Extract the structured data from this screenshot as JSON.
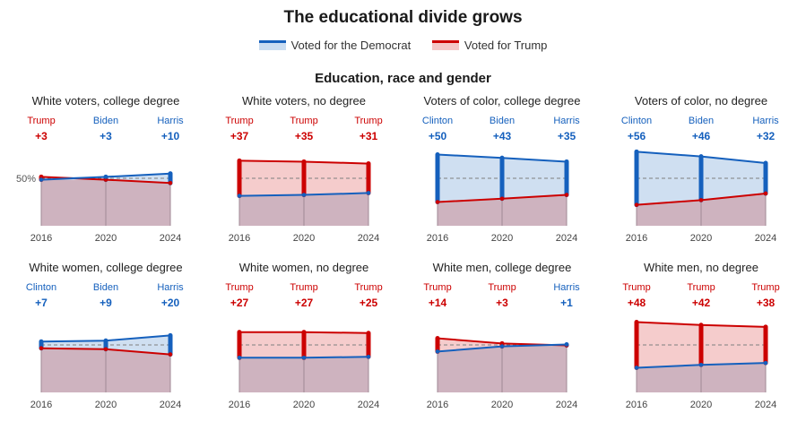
{
  "title": "The educational divide grows",
  "legend": [
    {
      "label": "Voted for the Democrat",
      "color": "#1560bd",
      "fill": "#c9dcf1"
    },
    {
      "label": "Voted for Trump",
      "color": "#cc0000",
      "fill": "#f4c7c7"
    }
  ],
  "subtitle": "Education, race and gender",
  "colors": {
    "dem": "#1560bd",
    "rep": "#cc0000",
    "dem_fill": "#cfdff1",
    "rep_fill": "#f5cccc",
    "overlap": "#ceb3bf",
    "axis": "#999999"
  },
  "chart_data": [
    {
      "type": "area",
      "title": "White voters, college degree",
      "x": [
        "2016",
        "2020",
        "2024"
      ],
      "ylabel_mark": "50%",
      "winners": [
        "Trump",
        "Biden",
        "Harris"
      ],
      "margins": [
        "+3",
        "+3",
        "+10"
      ],
      "series": [
        {
          "name": "Voted for the Democrat",
          "values": [
            48.5,
            51.5,
            55
          ]
        },
        {
          "name": "Voted for Trump",
          "values": [
            51.5,
            48.5,
            45
          ]
        }
      ]
    },
    {
      "type": "area",
      "title": "White voters, no degree",
      "x": [
        "2016",
        "2020",
        "2024"
      ],
      "winners": [
        "Trump",
        "Trump",
        "Trump"
      ],
      "margins": [
        "+37",
        "+35",
        "+31"
      ],
      "series": [
        {
          "name": "Voted for the Democrat",
          "values": [
            31.5,
            32.5,
            34.5
          ]
        },
        {
          "name": "Voted for Trump",
          "values": [
            68.5,
            67.5,
            65.5
          ]
        }
      ]
    },
    {
      "type": "area",
      "title": "Voters of color, college degree",
      "x": [
        "2016",
        "2020",
        "2024"
      ],
      "winners": [
        "Clinton",
        "Biden",
        "Harris"
      ],
      "margins": [
        "+50",
        "+43",
        "+35"
      ],
      "series": [
        {
          "name": "Voted for the Democrat",
          "values": [
            75,
            71.5,
            67.5
          ]
        },
        {
          "name": "Voted for Trump",
          "values": [
            25,
            28.5,
            32.5
          ]
        }
      ]
    },
    {
      "type": "area",
      "title": "Voters of color, no degree",
      "x": [
        "2016",
        "2020",
        "2024"
      ],
      "winners": [
        "Clinton",
        "Biden",
        "Harris"
      ],
      "margins": [
        "+56",
        "+46",
        "+32"
      ],
      "series": [
        {
          "name": "Voted for the Democrat",
          "values": [
            78,
            73,
            66
          ]
        },
        {
          "name": "Voted for Trump",
          "values": [
            22,
            27,
            34
          ]
        }
      ]
    },
    {
      "type": "area",
      "title": "White women, college degree",
      "x": [
        "2016",
        "2020",
        "2024"
      ],
      "winners": [
        "Clinton",
        "Biden",
        "Harris"
      ],
      "margins": [
        "+7",
        "+9",
        "+20"
      ],
      "series": [
        {
          "name": "Voted for the Democrat",
          "values": [
            53.5,
            54.5,
            60
          ]
        },
        {
          "name": "Voted for Trump",
          "values": [
            46.5,
            45.5,
            40
          ]
        }
      ]
    },
    {
      "type": "area",
      "title": "White women, no degree",
      "x": [
        "2016",
        "2020",
        "2024"
      ],
      "winners": [
        "Trump",
        "Trump",
        "Trump"
      ],
      "margins": [
        "+27",
        "+27",
        "+25"
      ],
      "series": [
        {
          "name": "Voted for the Democrat",
          "values": [
            36.5,
            36.5,
            37.5
          ]
        },
        {
          "name": "Voted for Trump",
          "values": [
            63.5,
            63.5,
            62.5
          ]
        }
      ]
    },
    {
      "type": "area",
      "title": "White men, college degree",
      "x": [
        "2016",
        "2020",
        "2024"
      ],
      "winners": [
        "Trump",
        "Trump",
        "Harris"
      ],
      "margins": [
        "+14",
        "+3",
        "+1"
      ],
      "series": [
        {
          "name": "Voted for the Democrat",
          "values": [
            43,
            48.5,
            50.5
          ]
        },
        {
          "name": "Voted for Trump",
          "values": [
            57,
            51.5,
            49.5
          ]
        }
      ]
    },
    {
      "type": "area",
      "title": "White men, no degree",
      "x": [
        "2016",
        "2020",
        "2024"
      ],
      "winners": [
        "Trump",
        "Trump",
        "Trump"
      ],
      "margins": [
        "+48",
        "+42",
        "+38"
      ],
      "series": [
        {
          "name": "Voted for the Democrat",
          "values": [
            26,
            29,
            31
          ]
        },
        {
          "name": "Voted for Trump",
          "values": [
            74,
            71,
            69
          ]
        }
      ]
    }
  ]
}
